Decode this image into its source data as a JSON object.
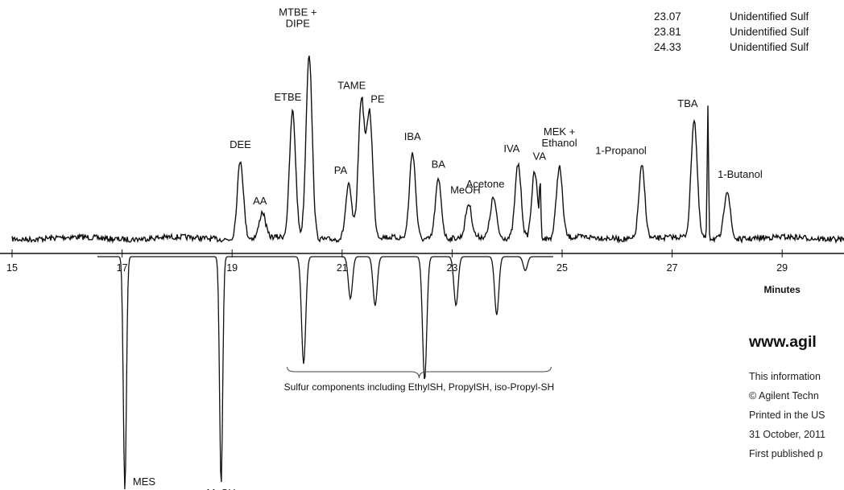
{
  "table_rows": [
    {
      "rt": "23.07",
      "name": "Unidentified Sulf"
    },
    {
      "rt": "23.81",
      "name": "Unidentified Sulf"
    },
    {
      "rt": "24.33",
      "name": "Unidentified Sulf"
    }
  ],
  "footer": {
    "url": "www.agil",
    "lines": [
      "This information",
      "© Agilent Techn",
      "Printed in the US",
      "31 October, 2011",
      "First published p"
    ]
  },
  "colors": {
    "trace": "#111111",
    "background": "#ffffff"
  },
  "chart_data": {
    "type": "line",
    "xlabel": "Minutes",
    "xlim": [
      15,
      30.2
    ],
    "x_ticks": [
      15,
      17,
      19,
      21,
      23,
      25,
      27,
      29
    ],
    "x_tick_labels": [
      "15",
      "17",
      "19",
      "21",
      "23",
      "25",
      "27",
      "29"
    ],
    "upper_trace": {
      "peaks": [
        {
          "label": "DEE",
          "rt": 19.15,
          "height": 0.4
        },
        {
          "label": "AA",
          "rt": 19.55,
          "height": 0.13
        },
        {
          "label": "ETBE",
          "rt": 20.1,
          "height": 0.64
        },
        {
          "label": "MTBE + DIPE",
          "rt": 20.4,
          "height": 0.94
        },
        {
          "label": "PA",
          "rt": 21.12,
          "height": 0.27
        },
        {
          "label": "TAME",
          "rt": 21.35,
          "height": 0.7
        },
        {
          "label": "PE",
          "rt": 21.5,
          "height": 0.63
        },
        {
          "label": "IBA",
          "rt": 22.28,
          "height": 0.44
        },
        {
          "label": "BA",
          "rt": 22.75,
          "height": 0.3
        },
        {
          "label": "MeOH",
          "rt": 23.3,
          "height": 0.17
        },
        {
          "label": "Acetone",
          "rt": 23.75,
          "height": 0.2
        },
        {
          "label": "IVA",
          "rt": 24.2,
          "height": 0.38
        },
        {
          "label": "VA",
          "rt": 24.5,
          "height": 0.34
        },
        {
          "label": "MEK + Ethanol",
          "rt": 24.95,
          "height": 0.36
        },
        {
          "label": "1-Propanol",
          "rt": 26.45,
          "height": 0.37
        },
        {
          "label": "TBA",
          "rt": 27.4,
          "height": 0.6
        },
        {
          "label": "1-Butanol",
          "rt": 28.0,
          "height": 0.25
        }
      ],
      "unlabeled_spikes": [
        {
          "rt": 24.6,
          "height": 0.25
        },
        {
          "rt": 27.65,
          "height": 0.68
        }
      ]
    },
    "lower_trace": {
      "peaks": [
        {
          "label": "MES",
          "rt": 17.05,
          "height": 1.0
        },
        {
          "label": "MeSH",
          "rt": 18.8,
          "height": 0.98
        },
        {
          "label": "",
          "rt": 20.3,
          "height": 0.46
        },
        {
          "label": "",
          "rt": 21.15,
          "height": 0.18
        },
        {
          "label": "",
          "rt": 21.6,
          "height": 0.21
        },
        {
          "label": "",
          "rt": 22.5,
          "height": 0.53
        },
        {
          "label": "",
          "rt": 23.07,
          "height": 0.21
        },
        {
          "label": "",
          "rt": 23.81,
          "height": 0.25
        },
        {
          "label": "",
          "rt": 24.33,
          "height": 0.06
        }
      ],
      "bracket_range": [
        20.0,
        24.8
      ],
      "bracket_label": "Sulfur components including EthylSH, PropylSH, iso-Propyl-SH"
    }
  }
}
